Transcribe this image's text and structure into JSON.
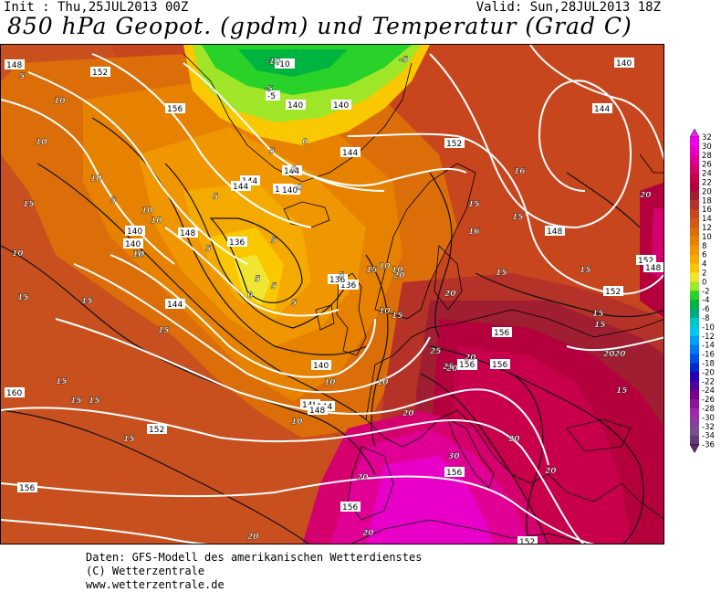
{
  "header": {
    "init": "Init : Thu,25JUL2013 00Z",
    "valid": "Valid: Sun,28JUL2013 18Z",
    "title": "850 hPa Geopot. (gpdm) und Temperatur (Grad C)"
  },
  "legend": {
    "ticks": [
      "32",
      "30",
      "28",
      "26",
      "24",
      "22",
      "20",
      "18",
      "16",
      "14",
      "12",
      "10",
      "8",
      "6",
      "4",
      "2",
      "0",
      "-2",
      "-4",
      "-6",
      "-8",
      "-10",
      "-12",
      "-14",
      "-16",
      "-18",
      "-20",
      "-22",
      "-24",
      "-26",
      "-28",
      "-30",
      "-32",
      "-34",
      "-36"
    ],
    "colors": [
      "#ee00ee",
      "#e800c8",
      "#e00096",
      "#d4006e",
      "#c8004c",
      "#b4003c",
      "#a01e32",
      "#b43228",
      "#c8461e",
      "#d25a14",
      "#dc6e0a",
      "#e68200",
      "#f09600",
      "#f5aa00",
      "#fac800",
      "#f0e632",
      "#a0e628",
      "#28d228",
      "#00b440",
      "#00aa82",
      "#00c8c8",
      "#00c8f0",
      "#00a0f0",
      "#0078f0",
      "#0050e6",
      "#0028c8",
      "#2800b4",
      "#5000a0",
      "#78008c",
      "#8c1496",
      "#a028aa",
      "#8c3ca0",
      "#78508c",
      "#643c78"
    ],
    "arrow_top_color": "#ee22ee",
    "arrow_bottom_color": "#5a2a70"
  },
  "map": {
    "geopotential_labels": [
      "148",
      "152",
      "156",
      "160",
      "156",
      "152",
      "148",
      "144",
      "140",
      "136",
      "-10",
      "-5",
      "140",
      "140",
      "144",
      "144",
      "144",
      "144",
      "136",
      "140",
      "144",
      "148",
      "152",
      "156",
      "156",
      "136",
      "140",
      "144",
      "148",
      "156",
      "156",
      "152",
      "148",
      "140",
      "144",
      "152",
      "156",
      "156",
      "152",
      "148",
      "140"
    ],
    "temperature_labels": [
      "5",
      "10",
      "10",
      "10",
      "10",
      "15",
      "15",
      "15",
      "15",
      "15",
      "15",
      "15",
      "15",
      "10",
      "10",
      "10",
      "10",
      "5",
      "5",
      "5",
      "0",
      "0",
      "5",
      "5",
      "5",
      "10",
      "10",
      "10",
      "10",
      "10",
      "15",
      "15",
      "15",
      "15",
      "20",
      "20",
      "20",
      "20",
      "20",
      "20",
      "20",
      "25",
      "20",
      "25",
      "30",
      "20",
      "20",
      "16",
      "20",
      "-10",
      "-5",
      "-5",
      "0",
      "5",
      "0",
      "5",
      "10",
      "15",
      "16",
      "15",
      "15",
      "20",
      "15",
      "20",
      "15",
      "5"
    ],
    "isoline_color": "#ffffff",
    "contour_color": "#000000"
  },
  "footer": {
    "line1": "Daten: GFS-Modell des amerikanischen Wetterdienstes",
    "line2": "(C) Wetterzentrale",
    "line3": "www.wetterzentrale.de"
  }
}
